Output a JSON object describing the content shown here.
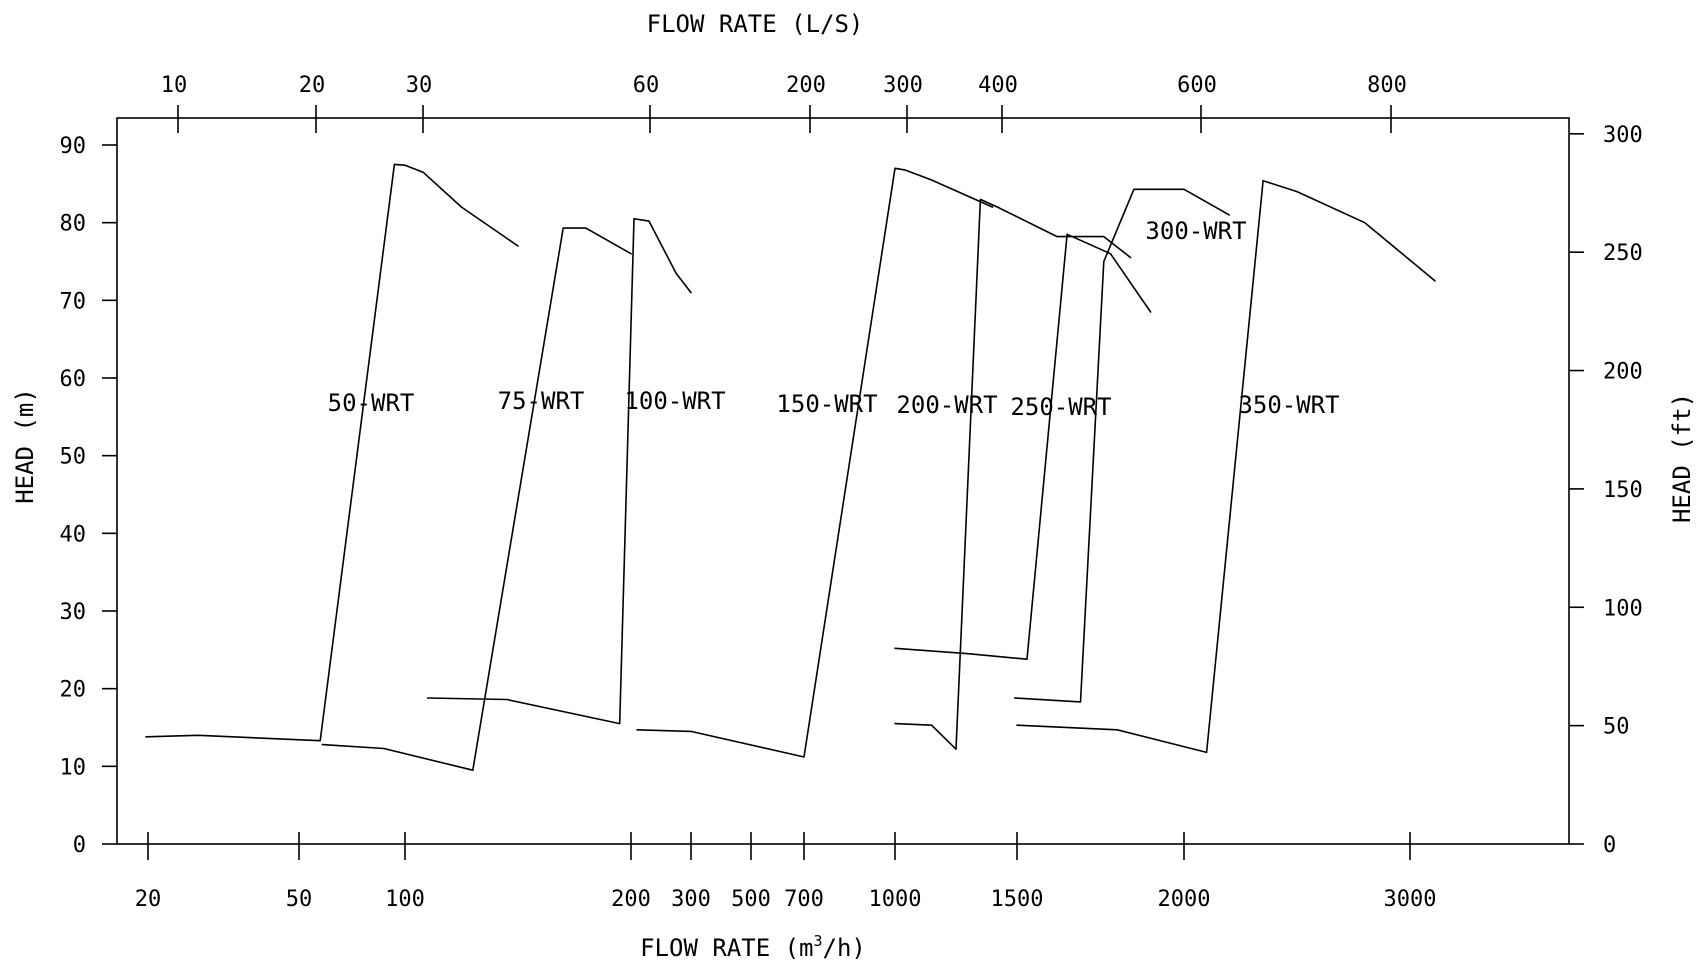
{
  "chart_data": {
    "type": "area",
    "title": "",
    "xlabel_top": "FLOW RATE (L/S)",
    "xlabel_bottom_prefix": "FLOW RATE (m",
    "xlabel_bottom_sup": "3",
    "xlabel_bottom_suffix": "/h)",
    "ylabel_left": "HEAD (m)",
    "ylabel_right": "HEAD (ft)",
    "ylim_m": [
      0,
      90
    ],
    "ylim_ft": [
      0,
      300
    ],
    "grid": false,
    "legend": "none",
    "line_color": "#000000",
    "background": "#ffffff",
    "left_ticks": [
      {
        "label": "0",
        "value": 0
      },
      {
        "label": "10",
        "value": 10
      },
      {
        "label": "20",
        "value": 20
      },
      {
        "label": "30",
        "value": 30
      },
      {
        "label": "40",
        "value": 40
      },
      {
        "label": "50",
        "value": 50
      },
      {
        "label": "60",
        "value": 60
      },
      {
        "label": "70",
        "value": 70
      },
      {
        "label": "80",
        "value": 80
      },
      {
        "label": "90",
        "value": 90
      }
    ],
    "right_ticks": [
      {
        "label": "0",
        "value": 0
      },
      {
        "label": "50",
        "value": 50
      },
      {
        "label": "100",
        "value": 100
      },
      {
        "label": "150",
        "value": 150
      },
      {
        "label": "200",
        "value": 200
      },
      {
        "label": "250",
        "value": 250
      },
      {
        "label": "300",
        "value": 300
      }
    ],
    "bottom_ticks": [
      {
        "label": "20",
        "value": 20
      },
      {
        "label": "50",
        "value": 50
      },
      {
        "label": "100",
        "value": 100
      },
      {
        "label": "200",
        "value": 200
      },
      {
        "label": "300",
        "value": 300
      },
      {
        "label": "500",
        "value": 500
      },
      {
        "label": "700",
        "value": 700
      },
      {
        "label": "1000",
        "value": 1000
      },
      {
        "label": "1500",
        "value": 1500
      },
      {
        "label": "2000",
        "value": 2000
      },
      {
        "label": "3000",
        "value": 3000
      }
    ],
    "top_ticks": [
      {
        "label": "10",
        "value": 10
      },
      {
        "label": "20",
        "value": 20
      },
      {
        "label": "30",
        "value": 30
      },
      {
        "label": "60",
        "value": 60
      },
      {
        "label": "200",
        "value": 200
      },
      {
        "label": "300",
        "value": 300
      },
      {
        "label": "400",
        "value": 400
      },
      {
        "label": "600",
        "value": 600
      },
      {
        "label": "800",
        "value": 800
      }
    ],
    "series": [
      {
        "name": "50-WRT",
        "points": [
          [
            19,
            13.8
          ],
          [
            30,
            14
          ],
          [
            60,
            13.3
          ],
          [
            95,
            87.5
          ],
          [
            100,
            87.4
          ],
          [
            108,
            86.5
          ],
          [
            125,
            82
          ],
          [
            150,
            77
          ]
        ]
      },
      {
        "name": "75-WRT",
        "points": [
          [
            61,
            12.8
          ],
          [
            90,
            12.3
          ],
          [
            130,
            9.5
          ],
          [
            170,
            79.3
          ],
          [
            180,
            79.3
          ],
          [
            200,
            76
          ]
        ]
      },
      {
        "name": "100-WRT",
        "points": [
          [
            110,
            18.8
          ],
          [
            145,
            18.6
          ],
          [
            195,
            15.5
          ],
          [
            205,
            80.5
          ],
          [
            230,
            80.2
          ],
          [
            275,
            73.5
          ],
          [
            300,
            71
          ]
        ]
      },
      {
        "name": "150-WRT",
        "points": [
          [
            210,
            14.7
          ],
          [
            300,
            14.5
          ],
          [
            700,
            11.2
          ],
          [
            1000,
            87
          ],
          [
            1040,
            86.8
          ],
          [
            1150,
            85.5
          ],
          [
            1400,
            82
          ]
        ]
      },
      {
        "name": "200-WRT",
        "points": [
          [
            1000,
            15.5
          ],
          [
            1150,
            15.3
          ],
          [
            1250,
            12.2
          ],
          [
            1350,
            83
          ],
          [
            1420,
            82
          ],
          [
            1620,
            78.2
          ],
          [
            1760,
            78.2
          ],
          [
            1840,
            75.5
          ]
        ]
      },
      {
        "name": "250-WRT",
        "points": [
          [
            1000,
            25.2
          ],
          [
            1300,
            24.5
          ],
          [
            1530,
            23.8
          ],
          [
            1650,
            78.5
          ],
          [
            1780,
            76
          ],
          [
            1900,
            68.5
          ]
        ]
      },
      {
        "name": "300-WRT",
        "points": [
          [
            1490,
            18.8
          ],
          [
            1690,
            18.3
          ],
          [
            1760,
            75
          ],
          [
            1850,
            84.3
          ],
          [
            2000,
            84.3
          ],
          [
            2200,
            81
          ]
        ]
      },
      {
        "name": "350-WRT",
        "points": [
          [
            1500,
            15.3
          ],
          [
            1800,
            14.7
          ],
          [
            2100,
            11.8
          ],
          [
            2350,
            85.4
          ],
          [
            2500,
            84
          ],
          [
            2800,
            80
          ],
          [
            3100,
            72.5
          ]
        ]
      }
    ]
  }
}
